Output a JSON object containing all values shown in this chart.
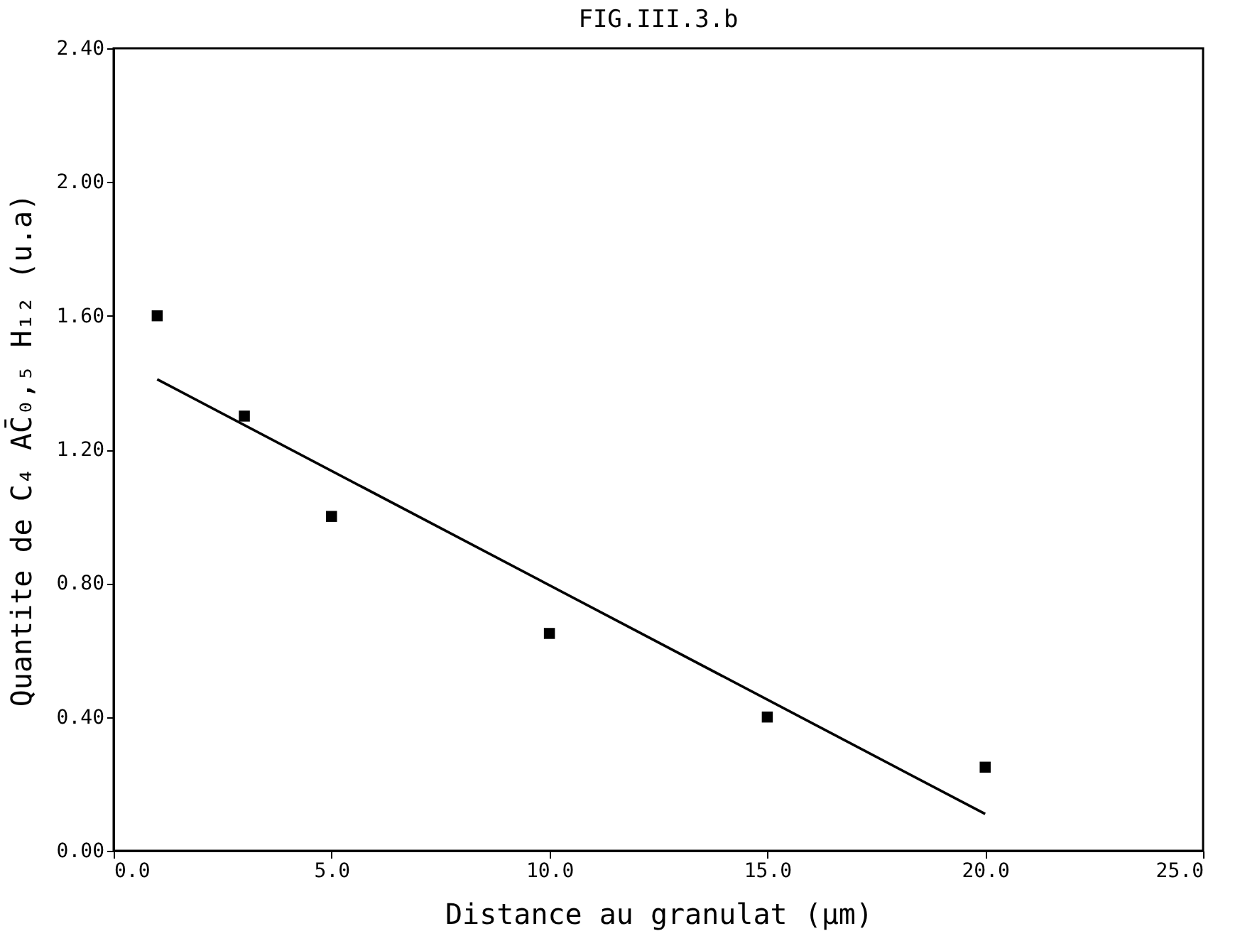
{
  "chart_data": {
    "type": "scatter",
    "title": "FIG.III.3.b",
    "xlabel": "Distance au granulat (µm)",
    "ylabel": "Quantite de C₄ AC̄₀,₅ H₁₂ (u.a)",
    "xlim": [
      0,
      25
    ],
    "ylim": [
      0,
      2.4
    ],
    "xticks": [
      {
        "value": 0,
        "label": "0.0"
      },
      {
        "value": 5,
        "label": "5.0"
      },
      {
        "value": 10,
        "label": "10.0"
      },
      {
        "value": 15,
        "label": "15.0"
      },
      {
        "value": 20,
        "label": "20.0"
      },
      {
        "value": 25,
        "label": "25.0"
      }
    ],
    "yticks": [
      {
        "value": 0,
        "label": "0.00"
      },
      {
        "value": 0.4,
        "label": "0.40"
      },
      {
        "value": 0.8,
        "label": "0.80"
      },
      {
        "value": 1.2,
        "label": "1.20"
      },
      {
        "value": 1.6,
        "label": "1.60"
      },
      {
        "value": 2.0,
        "label": "2.00"
      },
      {
        "value": 2.4,
        "label": "2.40"
      }
    ],
    "grid": false,
    "series": [
      {
        "color": "#000000",
        "marker": "square",
        "x": [
          1,
          3,
          5,
          10,
          15,
          20
        ],
        "values": [
          1.6,
          1.3,
          1.0,
          0.65,
          0.4,
          0.25
        ]
      },
      {
        "type": "line",
        "marker": "none",
        "color": "#000000",
        "x": [
          1,
          20
        ],
        "values": [
          1.41,
          0.11
        ]
      }
    ]
  }
}
